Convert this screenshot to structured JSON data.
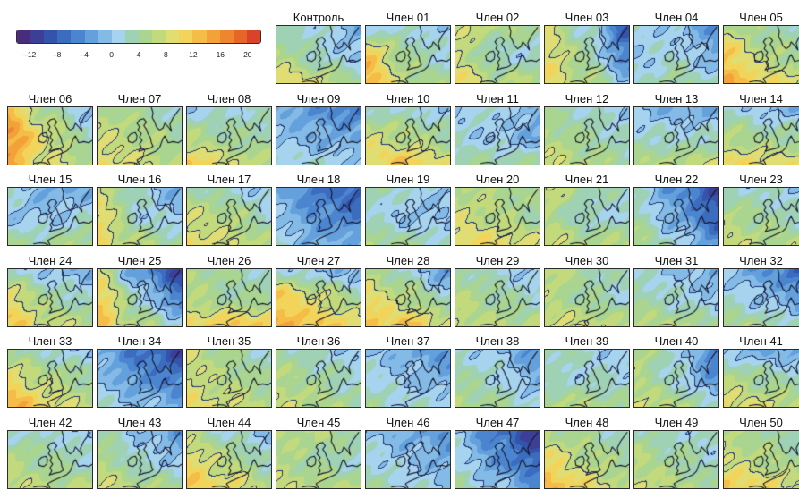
{
  "colorbar": {
    "range": [
      -14,
      22
    ],
    "colors": [
      "#4a2c7d",
      "#3d3f96",
      "#3354aa",
      "#3c6cbf",
      "#4c85cf",
      "#64a0dc",
      "#84bbe6",
      "#a6d3ee",
      "#9fd1b4",
      "#a9d590",
      "#c3da7c",
      "#e0dd72",
      "#f2d45a",
      "#f5bd47",
      "#f3a23a",
      "#ee8630",
      "#e66628",
      "#d9432a"
    ],
    "ticks": [
      {
        "value": -12,
        "label": "–12"
      },
      {
        "value": -8,
        "label": "–8"
      },
      {
        "value": -4,
        "label": "–4"
      },
      {
        "value": 0,
        "label": "0"
      },
      {
        "value": 4,
        "label": "4"
      },
      {
        "value": 8,
        "label": "8"
      },
      {
        "value": 12,
        "label": "12"
      },
      {
        "value": 16,
        "label": "16"
      },
      {
        "value": 20,
        "label": "20"
      }
    ]
  },
  "members": [
    {
      "label": "Контроль",
      "field": [
        [
          2,
          2,
          -2
        ],
        [
          6,
          2,
          0
        ],
        [
          10,
          8,
          4
        ]
      ]
    },
    {
      "label": "Член 01",
      "field": [
        [
          0,
          2,
          0
        ],
        [
          12,
          4,
          2
        ],
        [
          14,
          6,
          4
        ]
      ]
    },
    {
      "label": "Член 02",
      "field": [
        [
          8,
          6,
          4
        ],
        [
          8,
          2,
          2
        ],
        [
          10,
          6,
          6
        ]
      ]
    },
    {
      "label": "Член 03",
      "field": [
        [
          8,
          2,
          -8
        ],
        [
          10,
          4,
          -6
        ],
        [
          10,
          6,
          0
        ]
      ]
    },
    {
      "label": "Член 04",
      "field": [
        [
          2,
          0,
          -4
        ],
        [
          0,
          2,
          -2
        ],
        [
          2,
          4,
          2
        ]
      ]
    },
    {
      "label": "Член 05",
      "field": [
        [
          6,
          4,
          2
        ],
        [
          12,
          6,
          4
        ],
        [
          14,
          10,
          8
        ]
      ]
    },
    {
      "label": "Член 06",
      "field": [
        [
          12,
          4,
          0
        ],
        [
          16,
          8,
          2
        ],
        [
          14,
          8,
          6
        ]
      ]
    },
    {
      "label": "Член 07",
      "field": [
        [
          6,
          4,
          2
        ],
        [
          8,
          6,
          4
        ],
        [
          10,
          8,
          6
        ]
      ]
    },
    {
      "label": "Член 08",
      "field": [
        [
          0,
          2,
          2
        ],
        [
          6,
          4,
          4
        ],
        [
          12,
          8,
          6
        ]
      ]
    },
    {
      "label": "Член 09",
      "field": [
        [
          -2,
          -4,
          -6
        ],
        [
          0,
          -2,
          -2
        ],
        [
          2,
          2,
          0
        ]
      ]
    },
    {
      "label": "Член 10",
      "field": [
        [
          2,
          2,
          0
        ],
        [
          8,
          6,
          4
        ],
        [
          10,
          12,
          8
        ]
      ]
    },
    {
      "label": "Член 11",
      "field": [
        [
          0,
          2,
          -2
        ],
        [
          2,
          0,
          -2
        ],
        [
          4,
          4,
          4
        ]
      ]
    },
    {
      "label": "Член 12",
      "field": [
        [
          4,
          2,
          0
        ],
        [
          6,
          4,
          2
        ],
        [
          8,
          6,
          4
        ]
      ]
    },
    {
      "label": "Член 13",
      "field": [
        [
          0,
          -2,
          -2
        ],
        [
          2,
          2,
          2
        ],
        [
          6,
          6,
          8
        ]
      ]
    },
    {
      "label": "Член 14",
      "field": [
        [
          2,
          0,
          -2
        ],
        [
          6,
          4,
          4
        ],
        [
          10,
          10,
          8
        ]
      ]
    },
    {
      "label": "Член 15",
      "field": [
        [
          2,
          -2,
          -2
        ],
        [
          0,
          0,
          2
        ],
        [
          4,
          4,
          6
        ]
      ]
    },
    {
      "label": "Член 16",
      "field": [
        [
          8,
          2,
          -2
        ],
        [
          10,
          2,
          0
        ],
        [
          10,
          6,
          4
        ]
      ]
    },
    {
      "label": "Член 17",
      "field": [
        [
          4,
          2,
          0
        ],
        [
          8,
          6,
          2
        ],
        [
          10,
          8,
          6
        ]
      ]
    },
    {
      "label": "Член 18",
      "field": [
        [
          -2,
          -6,
          -8
        ],
        [
          0,
          -4,
          -6
        ],
        [
          2,
          -2,
          -2
        ]
      ]
    },
    {
      "label": "Член 19",
      "field": [
        [
          4,
          2,
          0
        ],
        [
          2,
          0,
          0
        ],
        [
          6,
          4,
          2
        ]
      ]
    },
    {
      "label": "Член 20",
      "field": [
        [
          6,
          6,
          4
        ],
        [
          8,
          6,
          4
        ],
        [
          10,
          10,
          8
        ]
      ]
    },
    {
      "label": "Член 21",
      "field": [
        [
          8,
          4,
          2
        ],
        [
          6,
          2,
          2
        ],
        [
          8,
          6,
          6
        ]
      ]
    },
    {
      "label": "Член 22",
      "field": [
        [
          2,
          -4,
          -10
        ],
        [
          4,
          -2,
          -8
        ],
        [
          6,
          2,
          -4
        ]
      ]
    },
    {
      "label": "Член 23",
      "field": [
        [
          2,
          2,
          0
        ],
        [
          6,
          4,
          2
        ],
        [
          8,
          6,
          6
        ]
      ]
    },
    {
      "label": "Член 24",
      "field": [
        [
          2,
          0,
          -2
        ],
        [
          10,
          4,
          2
        ],
        [
          12,
          8,
          6
        ]
      ]
    },
    {
      "label": "Член 25",
      "field": [
        [
          8,
          -4,
          -10
        ],
        [
          12,
          2,
          -6
        ],
        [
          12,
          6,
          2
        ]
      ]
    },
    {
      "label": "Член 26",
      "field": [
        [
          6,
          4,
          2
        ],
        [
          6,
          4,
          4
        ],
        [
          10,
          12,
          12
        ]
      ]
    },
    {
      "label": "Член 27",
      "field": [
        [
          2,
          0,
          -2
        ],
        [
          12,
          8,
          4
        ],
        [
          14,
          12,
          10
        ]
      ]
    },
    {
      "label": "Член 28",
      "field": [
        [
          6,
          2,
          -4
        ],
        [
          10,
          6,
          2
        ],
        [
          12,
          12,
          8
        ]
      ]
    },
    {
      "label": "Член 29",
      "field": [
        [
          4,
          2,
          0
        ],
        [
          6,
          4,
          2
        ],
        [
          8,
          6,
          6
        ]
      ]
    },
    {
      "label": "Член 30",
      "field": [
        [
          8,
          4,
          2
        ],
        [
          6,
          4,
          2
        ],
        [
          8,
          8,
          6
        ]
      ]
    },
    {
      "label": "Член 31",
      "field": [
        [
          2,
          0,
          -2
        ],
        [
          4,
          2,
          0
        ],
        [
          6,
          6,
          4
        ]
      ]
    },
    {
      "label": "Член 32",
      "field": [
        [
          0,
          -4,
          -8
        ],
        [
          2,
          0,
          -4
        ],
        [
          6,
          4,
          2
        ]
      ]
    },
    {
      "label": "Член 33",
      "field": [
        [
          4,
          2,
          0
        ],
        [
          10,
          6,
          4
        ],
        [
          14,
          10,
          6
        ]
      ]
    },
    {
      "label": "Член 34",
      "field": [
        [
          -2,
          -6,
          -10
        ],
        [
          0,
          -4,
          -6
        ],
        [
          2,
          0,
          -2
        ]
      ]
    },
    {
      "label": "Член 35",
      "field": [
        [
          8,
          4,
          2
        ],
        [
          8,
          6,
          4
        ],
        [
          10,
          8,
          6
        ]
      ]
    },
    {
      "label": "Член 36",
      "field": [
        [
          4,
          2,
          0
        ],
        [
          6,
          4,
          2
        ],
        [
          8,
          6,
          4
        ]
      ]
    },
    {
      "label": "Член 37",
      "field": [
        [
          0,
          -2,
          -4
        ],
        [
          2,
          0,
          -2
        ],
        [
          4,
          2,
          2
        ]
      ]
    },
    {
      "label": "Член 38",
      "field": [
        [
          2,
          0,
          -4
        ],
        [
          4,
          2,
          -2
        ],
        [
          6,
          4,
          2
        ]
      ]
    },
    {
      "label": "Член 39",
      "field": [
        [
          4,
          2,
          0
        ],
        [
          2,
          2,
          2
        ],
        [
          6,
          6,
          4
        ]
      ]
    },
    {
      "label": "Член 40",
      "field": [
        [
          6,
          2,
          -6
        ],
        [
          6,
          2,
          -4
        ],
        [
          8,
          6,
          2
        ]
      ]
    },
    {
      "label": "Член 41",
      "field": [
        [
          0,
          -2,
          -2
        ],
        [
          6,
          4,
          2
        ],
        [
          10,
          8,
          6
        ]
      ]
    },
    {
      "label": "Член 42",
      "field": [
        [
          2,
          2,
          0
        ],
        [
          6,
          4,
          2
        ],
        [
          8,
          6,
          6
        ]
      ]
    },
    {
      "label": "Член 43",
      "field": [
        [
          4,
          0,
          -4
        ],
        [
          6,
          2,
          0
        ],
        [
          8,
          6,
          4
        ]
      ]
    },
    {
      "label": "Член 44",
      "field": [
        [
          6,
          2,
          0
        ],
        [
          10,
          6,
          2
        ],
        [
          12,
          10,
          6
        ]
      ]
    },
    {
      "label": "Член 45",
      "field": [
        [
          6,
          6,
          4
        ],
        [
          6,
          4,
          2
        ],
        [
          8,
          6,
          6
        ]
      ]
    },
    {
      "label": "Член 46",
      "field": [
        [
          0,
          -2,
          -4
        ],
        [
          2,
          0,
          -2
        ],
        [
          4,
          2,
          0
        ]
      ]
    },
    {
      "label": "Член 47",
      "field": [
        [
          0,
          -6,
          -12
        ],
        [
          2,
          -4,
          -8
        ],
        [
          4,
          0,
          -4
        ]
      ]
    },
    {
      "label": "Член 48",
      "field": [
        [
          6,
          4,
          2
        ],
        [
          10,
          6,
          4
        ],
        [
          14,
          10,
          6
        ]
      ]
    },
    {
      "label": "Член 49",
      "field": [
        [
          4,
          2,
          2
        ],
        [
          6,
          4,
          2
        ],
        [
          8,
          6,
          4
        ]
      ]
    },
    {
      "label": "Член 50",
      "field": [
        [
          6,
          4,
          2
        ],
        [
          8,
          6,
          4
        ],
        [
          12,
          10,
          8
        ]
      ]
    }
  ]
}
